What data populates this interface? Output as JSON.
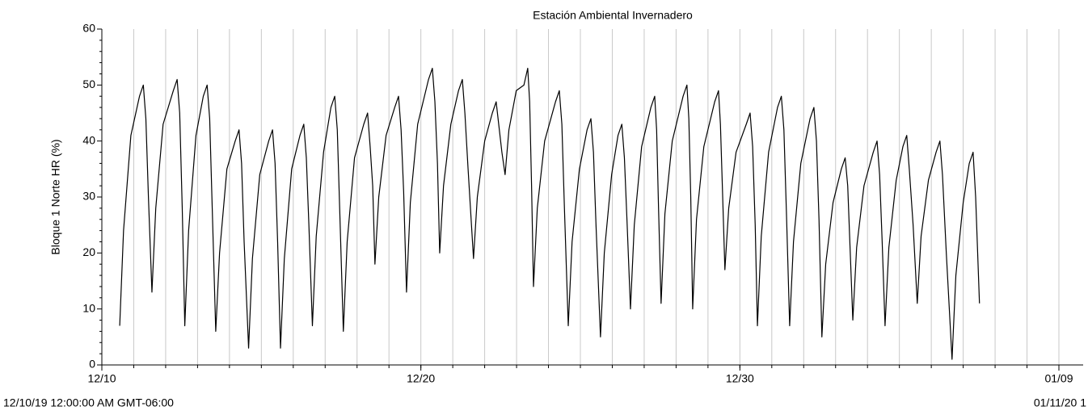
{
  "chart_data": {
    "type": "line",
    "title": "Estación Ambiental Invernadero",
    "y_label": "Bloque 1 Norte HR (%)",
    "start_label": "12/10/19 12:00:00 AM GMT-06:00",
    "end_label": "01/11/20 1",
    "xlim": [
      0,
      30.76
    ],
    "xticks": [
      {
        "value": 0,
        "label": "12/10"
      },
      {
        "value": 10,
        "label": "12/20"
      },
      {
        "value": 20,
        "label": "12/30"
      },
      {
        "value": 30,
        "label": "01/09"
      }
    ],
    "ylim": [
      0,
      60
    ],
    "yticks": [
      0,
      10,
      20,
      30,
      40,
      50,
      60
    ],
    "grid": true,
    "series": [
      {
        "name": "Bloque 1 Norte HR",
        "color": "#000000",
        "x": [
          0.56,
          0.68,
          0.91,
          1.18,
          1.3,
          1.38,
          1.46,
          1.57,
          1.69,
          1.92,
          2.24,
          2.36,
          2.44,
          2.52,
          2.6,
          2.72,
          2.95,
          3.18,
          3.3,
          3.38,
          3.46,
          3.57,
          3.69,
          3.92,
          4.18,
          4.3,
          4.38,
          4.46,
          4.6,
          4.72,
          4.95,
          5.23,
          5.35,
          5.43,
          5.51,
          5.6,
          5.72,
          5.95,
          6.21,
          6.33,
          6.41,
          6.49,
          6.6,
          6.72,
          6.95,
          7.18,
          7.3,
          7.38,
          7.46,
          7.57,
          7.69,
          7.92,
          8.21,
          8.33,
          8.41,
          8.49,
          8.56,
          8.68,
          8.91,
          9.18,
          9.3,
          9.38,
          9.46,
          9.55,
          9.67,
          9.9,
          10.24,
          10.36,
          10.44,
          10.52,
          10.59,
          10.71,
          10.94,
          11.18,
          11.3,
          11.38,
          11.48,
          11.65,
          11.77,
          12.0,
          12.24,
          12.36,
          12.44,
          12.54,
          12.64,
          12.76,
          12.99,
          13.23,
          13.35,
          13.41,
          13.47,
          13.53,
          13.65,
          13.88,
          14.22,
          14.34,
          14.42,
          14.5,
          14.62,
          14.74,
          14.97,
          15.21,
          15.33,
          15.41,
          15.49,
          15.63,
          15.75,
          15.98,
          16.18,
          16.3,
          16.38,
          16.46,
          16.57,
          16.69,
          16.92,
          17.21,
          17.33,
          17.39,
          17.45,
          17.53,
          17.65,
          17.88,
          18.22,
          18.34,
          18.4,
          18.46,
          18.52,
          18.64,
          18.87,
          19.21,
          19.33,
          19.39,
          19.45,
          19.53,
          19.65,
          19.88,
          20.2,
          20.32,
          20.4,
          20.48,
          20.55,
          20.67,
          20.9,
          21.18,
          21.3,
          21.38,
          21.46,
          21.56,
          21.68,
          21.91,
          22.2,
          22.32,
          22.4,
          22.48,
          22.57,
          22.69,
          22.92,
          23.18,
          23.3,
          23.38,
          23.46,
          23.54,
          23.66,
          23.89,
          24.18,
          24.3,
          24.38,
          24.46,
          24.55,
          24.67,
          24.9,
          25.11,
          25.23,
          25.31,
          25.43,
          25.56,
          25.68,
          25.91,
          26.15,
          26.27,
          26.35,
          26.47,
          26.65,
          26.77,
          27.0,
          27.19,
          27.31,
          27.39,
          27.51
        ],
        "values": [
          7,
          24,
          41,
          48,
          50,
          44,
          30,
          13,
          28,
          43,
          49,
          51,
          45,
          28,
          7,
          24,
          41,
          48,
          50,
          44,
          28,
          6,
          20,
          35,
          40,
          42,
          36,
          22,
          3,
          19,
          34,
          40,
          42,
          36,
          22,
          3,
          19,
          35,
          41,
          43,
          37,
          25,
          7,
          23,
          38,
          46,
          48,
          42,
          27,
          6,
          22,
          37,
          43,
          45,
          39,
          32,
          18,
          30,
          41,
          46,
          48,
          42,
          31,
          13,
          29,
          43,
          51,
          53,
          47,
          36,
          20,
          32,
          43,
          49,
          51,
          45,
          35,
          19,
          30,
          40,
          45,
          47,
          43,
          38,
          34,
          42,
          49,
          50,
          53,
          47,
          32,
          14,
          28,
          40,
          47,
          49,
          43,
          28,
          7,
          22,
          35,
          42,
          44,
          38,
          25,
          5,
          20,
          34,
          41,
          43,
          37,
          26,
          10,
          25,
          39,
          46,
          48,
          42,
          28,
          11,
          27,
          40,
          48,
          50,
          44,
          30,
          10,
          26,
          39,
          47,
          49,
          43,
          32,
          17,
          28,
          38,
          43,
          45,
          39,
          25,
          7,
          23,
          38,
          46,
          48,
          42,
          27,
          7,
          22,
          36,
          44,
          46,
          40,
          26,
          5,
          18,
          29,
          35,
          37,
          32,
          20,
          8,
          21,
          32,
          38,
          40,
          34,
          22,
          7,
          21,
          33,
          39,
          41,
          35,
          25,
          11,
          23,
          33,
          38,
          40,
          34,
          20,
          1,
          16,
          29,
          36,
          38,
          30,
          11
        ]
      }
    ]
  }
}
